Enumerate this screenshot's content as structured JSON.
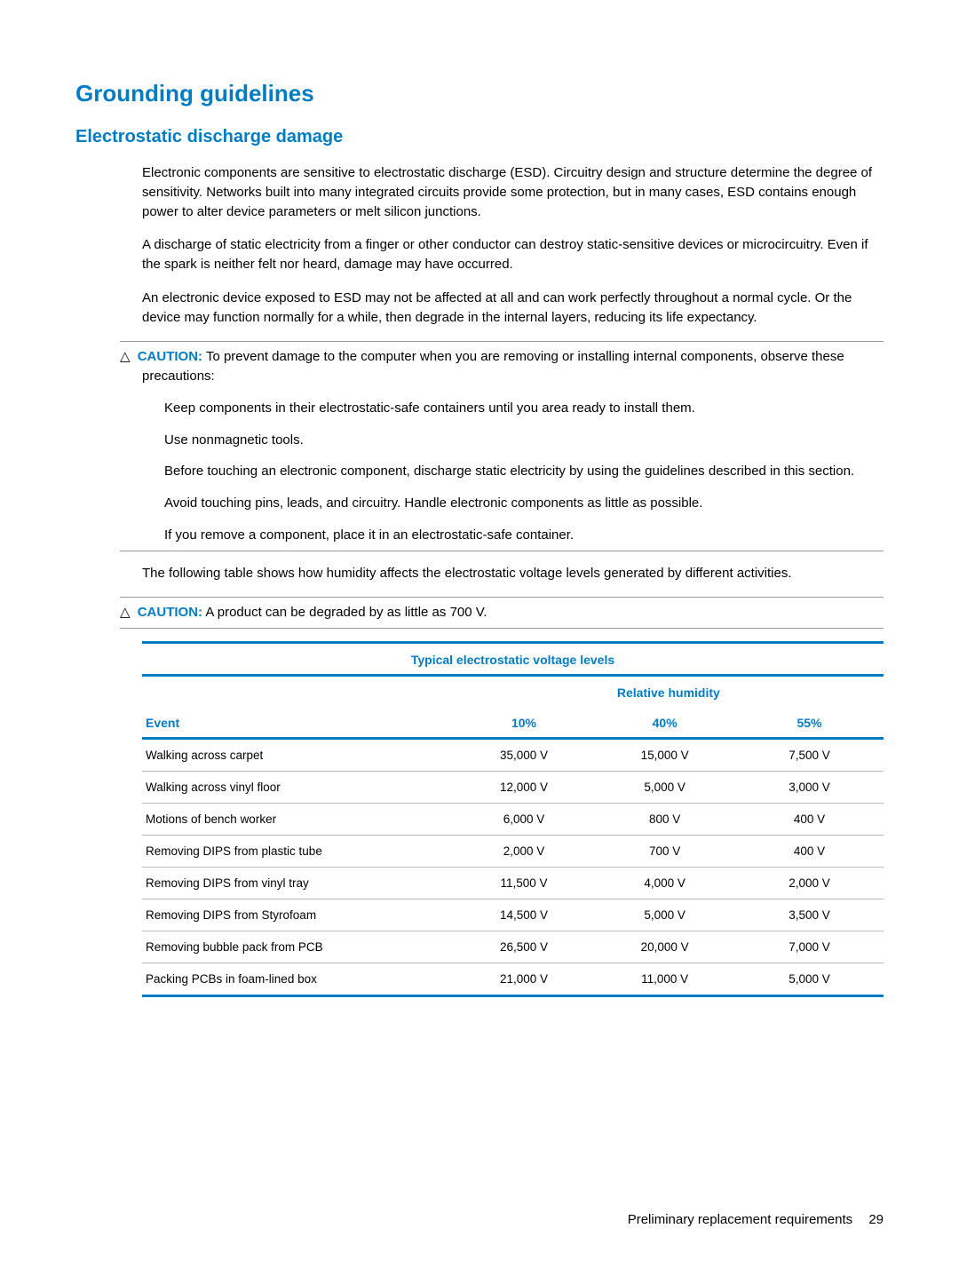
{
  "colors": {
    "accent": "#007cc2",
    "text": "#000000",
    "rule_gray": "#999999"
  },
  "heading1": "Grounding guidelines",
  "heading2": "Electrostatic discharge damage",
  "para1": "Electronic components are sensitive to electrostatic discharge (ESD). Circuitry design and structure determine the degree of sensitivity. Networks built into many integrated circuits provide some protection, but in many cases, ESD contains enough power to alter device parameters or melt silicon junctions.",
  "para2": "A discharge of static electricity from a finger or other conductor can destroy static-sensitive devices or microcircuitry. Even if the spark is neither felt nor heard, damage may have occurred.",
  "para3": "An electronic device exposed to ESD may not be affected at all and can work perfectly throughout a normal cycle. Or the device may function normally for a while, then degrade in the internal layers, reducing its life expectancy.",
  "caution1": {
    "label": "CAUTION:",
    "lead": "To prevent damage to the computer when you are removing or installing internal components, observe these precautions:",
    "items": [
      "Keep components in their electrostatic-safe containers until you area ready to install them.",
      "Use nonmagnetic tools.",
      "Before touching an electronic component, discharge static electricity by using the guidelines described in this section.",
      "Avoid touching pins, leads, and circuitry. Handle electronic components as little as possible.",
      "If you remove a component, place it in an electrostatic-safe container."
    ]
  },
  "para4": "The following table shows how humidity affects the electrostatic voltage levels generated by different activities.",
  "caution2": {
    "label": "CAUTION:",
    "text": "A product can be degraded by as little as 700 V."
  },
  "table": {
    "title": "Typical electrostatic voltage levels",
    "sub_header": "Relative humidity",
    "col_headers": [
      "Event",
      "10%",
      "40%",
      "55%"
    ],
    "rows": [
      [
        "Walking across carpet",
        "35,000 V",
        "15,000 V",
        "7,500 V"
      ],
      [
        "Walking across vinyl floor",
        "12,000 V",
        "5,000 V",
        "3,000 V"
      ],
      [
        "Motions of bench worker",
        "6,000 V",
        "800 V",
        "400 V"
      ],
      [
        "Removing DIPS from plastic tube",
        "2,000 V",
        "700 V",
        "400 V"
      ],
      [
        "Removing DIPS from vinyl tray",
        "11,500 V",
        "4,000 V",
        "2,000 V"
      ],
      [
        "Removing DIPS from Styrofoam",
        "14,500 V",
        "5,000 V",
        "3,500 V"
      ],
      [
        "Removing bubble pack from PCB",
        "26,500 V",
        "20,000 V",
        "7,000 V"
      ],
      [
        "Packing PCBs in foam-lined box",
        "21,000 V",
        "11,000 V",
        "5,000 V"
      ]
    ],
    "col_widths_pct": [
      42,
      19,
      19,
      20
    ],
    "border_color": "#007cc2"
  },
  "footer": {
    "section": "Preliminary replacement requirements",
    "page": "29"
  }
}
